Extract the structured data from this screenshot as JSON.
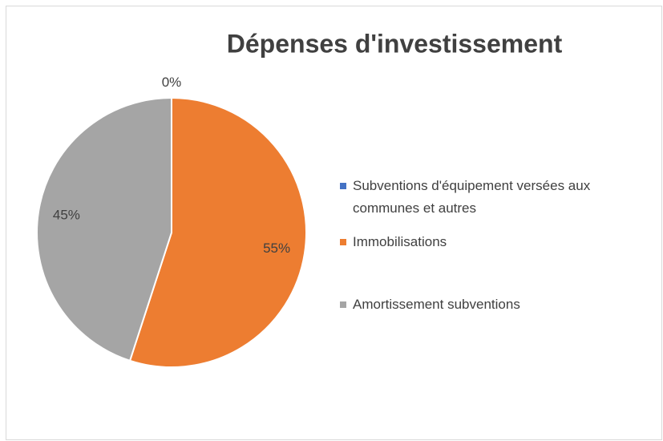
{
  "chart_data": {
    "type": "pie",
    "title": "Dépenses d'investissement",
    "categories": [
      "Subventions d'équipement versées aux communes et autres",
      "Immobilisations",
      "Amortissement subventions"
    ],
    "values": [
      0,
      55,
      45
    ],
    "value_labels": [
      "0%",
      "55%",
      "45%"
    ],
    "colors": [
      "#4472c4",
      "#ed7d31",
      "#a5a5a5"
    ],
    "legend": "right"
  }
}
